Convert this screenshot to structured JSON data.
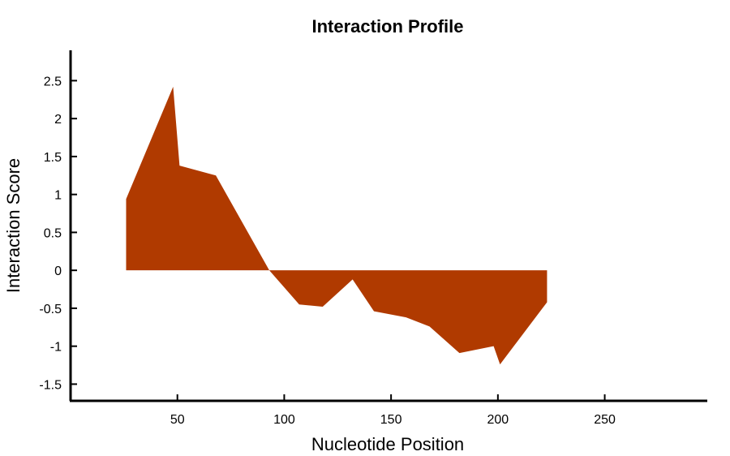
{
  "chart_data": {
    "type": "area",
    "title": "Interaction Profile",
    "xlabel": "Nucleotide Position",
    "ylabel": "Interaction Score",
    "x": [
      26,
      48,
      51,
      68,
      82,
      93,
      107,
      118,
      132,
      142,
      157,
      168,
      182,
      198,
      201,
      223
    ],
    "y": [
      0.94,
      2.42,
      1.38,
      1.25,
      0.55,
      0.0,
      -0.45,
      -0.48,
      -0.12,
      -0.54,
      -0.62,
      -0.74,
      -1.09,
      -1.0,
      -1.24,
      -0.42
    ],
    "xlim": [
      0,
      298
    ],
    "ylim": [
      -1.72,
      2.9
    ],
    "xticks": [
      50,
      100,
      150,
      200,
      250
    ],
    "xtick_labels": [
      "50",
      "100",
      "150",
      "200",
      "250"
    ],
    "yticks": [
      2.5,
      2,
      1.5,
      1,
      0.5,
      0,
      -0.5,
      -1,
      -1.5
    ],
    "ytick_labels": [
      "2.5",
      "2",
      "1.5",
      "1",
      "0.5",
      "0",
      "-0.5",
      "-1",
      "-1.5"
    ],
    "fill_color": "#B03A00",
    "grid": false,
    "legend": "none"
  }
}
